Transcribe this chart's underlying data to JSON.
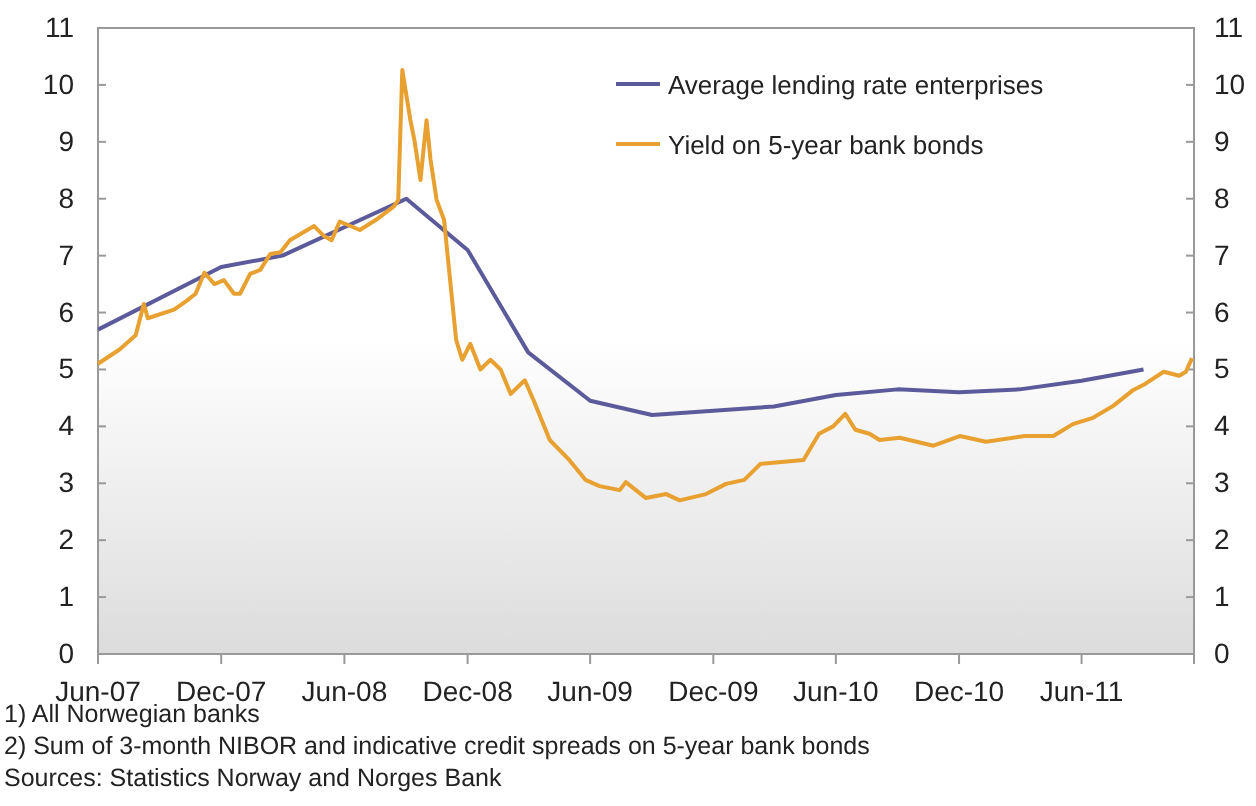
{
  "chart_data": {
    "type": "line",
    "xlim": [
      "2007-06-01",
      "2011-11-15"
    ],
    "xticks": [
      {
        "value": "2007-06-01",
        "label": "Jun-07"
      },
      {
        "value": "2007-12-01",
        "label": "Dec-07"
      },
      {
        "value": "2008-06-01",
        "label": "Jun-08"
      },
      {
        "value": "2008-12-01",
        "label": "Dec-08"
      },
      {
        "value": "2009-06-01",
        "label": "Jun-09"
      },
      {
        "value": "2009-12-01",
        "label": "Dec-09"
      },
      {
        "value": "2010-06-01",
        "label": "Jun-10"
      },
      {
        "value": "2010-12-01",
        "label": "Dec-10"
      },
      {
        "value": "2011-06-01",
        "label": "Jun-11"
      }
    ],
    "ylim": [
      0,
      11
    ],
    "yticks": [
      0,
      1,
      2,
      3,
      4,
      5,
      6,
      7,
      8,
      9,
      10,
      11
    ],
    "y2lim": [
      0,
      11
    ],
    "y2ticks": [
      0,
      1,
      2,
      3,
      4,
      5,
      6,
      7,
      8,
      9,
      10,
      11
    ],
    "legend": "top right",
    "grid": false,
    "series": [
      {
        "name": "Average lending rate enterprises",
        "color": "#5b5a9a",
        "x": [
          "2007-06-01",
          "2007-12-01",
          "2008-03-01",
          "2008-09-01",
          "2008-12-01",
          "2009-03-01",
          "2009-06-01",
          "2009-09-01",
          "2010-03-01",
          "2010-06-01",
          "2010-09-01",
          "2010-12-01",
          "2011-03-01",
          "2011-06-01",
          "2011-09-01"
        ],
        "values": [
          5.7,
          6.8,
          7.0,
          8.0,
          7.1,
          5.3,
          4.45,
          4.2,
          4.35,
          4.55,
          4.65,
          4.6,
          4.65,
          4.8,
          5.0
        ]
      },
      {
        "name": "Yield on 5-year bank bonds",
        "color": "#e8a030",
        "x": [
          "2007-06-01",
          "2007-07-03",
          "2007-07-27",
          "2007-08-08",
          "2007-08-14",
          "2007-09-22",
          "2007-10-10",
          "2007-10-24",
          "2007-11-06",
          "2007-11-21",
          "2007-12-05",
          "2007-12-20",
          "2007-12-29",
          "2008-01-13",
          "2008-01-28",
          "2008-02-12",
          "2008-02-27",
          "2008-03-12",
          "2008-04-17",
          "2008-05-01",
          "2008-05-13",
          "2008-05-25",
          "2008-06-24",
          "2008-07-18",
          "2008-08-14",
          "2008-08-20",
          "2008-08-26",
          "2008-09-07",
          "2008-09-13",
          "2008-09-22",
          "2008-10-01",
          "2008-10-07",
          "2008-10-16",
          "2008-10-27",
          "2008-11-08",
          "2008-11-14",
          "2008-11-23",
          "2008-12-05",
          "2008-12-20",
          "2009-01-04",
          "2009-01-19",
          "2009-02-03",
          "2009-02-24",
          "2009-03-09",
          "2009-04-02",
          "2009-05-01",
          "2009-05-25",
          "2009-06-15",
          "2009-07-15",
          "2009-07-24",
          "2009-08-23",
          "2009-09-22",
          "2009-10-12",
          "2009-11-20",
          "2009-12-20",
          "2010-01-16",
          "2010-02-09",
          "2010-04-14",
          "2010-05-07",
          "2010-05-28",
          "2010-06-15",
          "2010-06-30",
          "2010-07-21",
          "2010-08-05",
          "2010-09-04",
          "2010-10-24",
          "2010-12-02",
          "2011-01-10",
          "2011-03-09",
          "2011-04-20",
          "2011-05-19",
          "2011-06-18",
          "2011-07-18",
          "2011-08-17",
          "2011-09-04",
          "2011-10-01",
          "2011-10-24",
          "2011-11-03",
          "2011-11-12"
        ],
        "values": [
          5.1,
          5.35,
          5.6,
          6.15,
          5.9,
          6.05,
          6.2,
          6.33,
          6.7,
          6.5,
          6.57,
          6.33,
          6.33,
          6.68,
          6.75,
          7.03,
          7.06,
          7.27,
          7.52,
          7.35,
          7.27,
          7.6,
          7.45,
          7.63,
          7.87,
          7.98,
          10.26,
          9.38,
          9.03,
          8.33,
          9.38,
          8.68,
          7.98,
          7.63,
          6.22,
          5.52,
          5.17,
          5.45,
          5.0,
          5.17,
          5.0,
          4.57,
          4.81,
          4.46,
          3.76,
          3.41,
          3.06,
          2.95,
          2.88,
          3.02,
          2.74,
          2.81,
          2.7,
          2.81,
          2.99,
          3.06,
          3.34,
          3.41,
          3.87,
          4.0,
          4.22,
          3.94,
          3.87,
          3.76,
          3.8,
          3.66,
          3.83,
          3.73,
          3.83,
          3.83,
          4.04,
          4.15,
          4.36,
          4.64,
          4.75,
          4.96,
          4.89,
          4.96,
          5.2
        ]
      }
    ],
    "annotations": [
      "1) All Norwegian banks",
      "2) Sum of 3-month NIBOR and indicative credit spreads on 5-year bank bonds",
      "Sources: Statistics Norway and Norges Bank"
    ]
  }
}
